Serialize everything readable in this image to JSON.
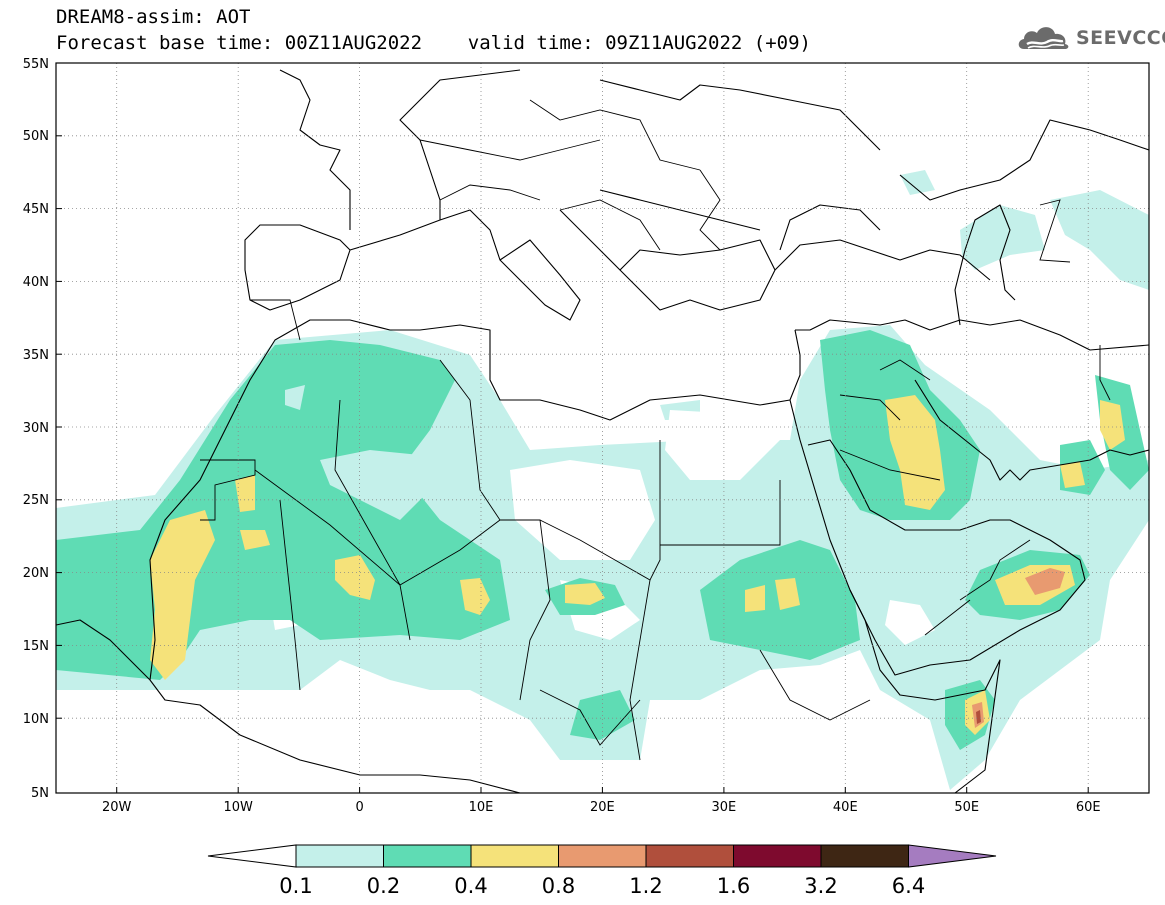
{
  "header": {
    "line1": "DREAM8-assim: AOT",
    "line2": "Forecast base time: 00Z11AUG2022    valid time: 09Z11AUG2022 (+09)"
  },
  "logo": {
    "text": "SEEVCCC",
    "icon": "cloud-icon",
    "color": "#6b6b6b"
  },
  "map": {
    "projection": "lat-lon",
    "lon_range": [
      -25,
      65
    ],
    "lat_range": [
      5,
      55
    ],
    "lat_ticks": [
      "5N",
      "10N",
      "15N",
      "20N",
      "25N",
      "30N",
      "35N",
      "40N",
      "45N",
      "50N",
      "55N"
    ],
    "lon_ticks": [
      "20W",
      "10W",
      "0",
      "10E",
      "20E",
      "30E",
      "40E",
      "50E",
      "60E"
    ],
    "grid": "dotted"
  },
  "colorbar": {
    "levels": [
      "0.1",
      "0.2",
      "0.4",
      "0.8",
      "1.2",
      "1.6",
      "3.2",
      "6.4"
    ],
    "colors": [
      "#c4f0ea",
      "#5fdcb4",
      "#f5e27a",
      "#e89a70",
      "#b04f3c",
      "#7e0a2e",
      "#3e2614",
      "#a57cc0"
    ],
    "extend": "both"
  }
}
